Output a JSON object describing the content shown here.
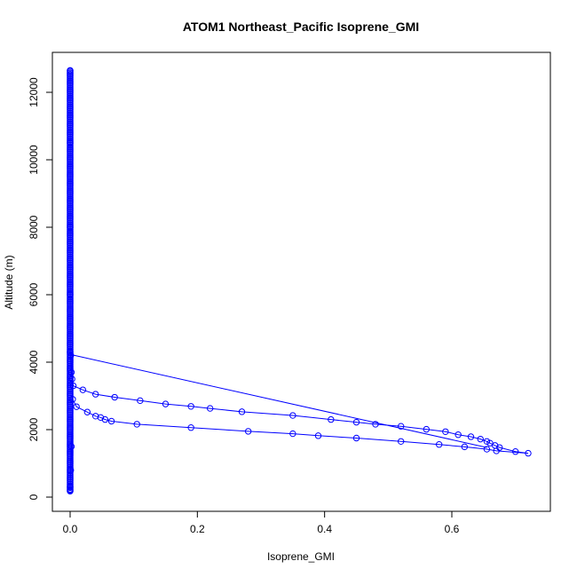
{
  "chart_data": {
    "type": "line",
    "title": "ATOM1 Northeast_Pacific Isoprene_GMI",
    "xlabel": "Isoprene_GMI",
    "ylabel": "Altitude (m)",
    "xlim": [
      0,
      0.72
    ],
    "ylim": [
      0,
      12700
    ],
    "x_ticks": [
      0.0,
      0.2,
      0.4,
      0.6
    ],
    "x_tick_labels": [
      "0.0",
      "0.2",
      "0.4",
      "0.6"
    ],
    "y_ticks": [
      0,
      2000,
      4000,
      6000,
      8000,
      10000,
      12000
    ],
    "y_tick_labels": [
      "0",
      "2000",
      "4000",
      "6000",
      "8000",
      "10000",
      "12000"
    ],
    "grid": false,
    "color": "#0000ff",
    "series": [
      {
        "marker": "open-circle",
        "x": [
          0.0,
          0.0,
          0.0,
          0.0,
          0.0,
          0.001,
          0.002,
          0.003,
          0.005,
          0.02,
          0.04,
          0.07,
          0.11,
          0.15,
          0.19,
          0.22,
          0.27,
          0.35,
          0.41,
          0.45,
          0.48,
          0.52,
          0.56,
          0.59,
          0.61,
          0.63,
          0.645,
          0.655,
          0.66,
          0.668,
          0.675,
          0.7,
          0.72,
          0.67,
          0.655,
          0.62,
          0.58,
          0.52,
          0.45,
          0.39,
          0.35,
          0.28,
          0.19,
          0.105,
          0.065,
          0.055,
          0.048,
          0.04,
          0.027,
          0.01,
          0.004,
          0.002,
          0.001,
          0.0,
          0.0
        ],
        "y": [
          12650,
          10500,
          8000,
          6000,
          4300,
          4200,
          3700,
          3500,
          3300,
          3180,
          3050,
          2960,
          2860,
          2760,
          2690,
          2630,
          2530,
          2420,
          2300,
          2220,
          2160,
          2100,
          2010,
          1940,
          1850,
          1790,
          1720,
          1650,
          1600,
          1530,
          1470,
          1350,
          1300,
          1370,
          1420,
          1490,
          1560,
          1650,
          1750,
          1820,
          1880,
          1950,
          2060,
          2160,
          2250,
          2300,
          2360,
          2400,
          2520,
          2680,
          2900,
          1500,
          800,
          300,
          200
        ]
      },
      {
        "marker": "none",
        "x": [
          0.0,
          0.655
        ],
        "y": [
          4230,
          1470
        ]
      }
    ]
  }
}
